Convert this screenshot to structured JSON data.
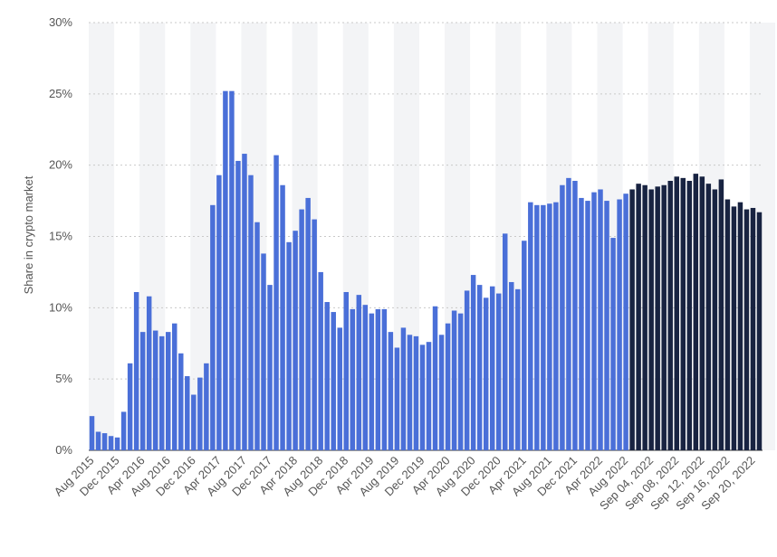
{
  "chart_data": {
    "type": "bar",
    "ylabel": "Share in crypto market",
    "ylim": [
      0,
      30
    ],
    "y_ticks": [
      "0%",
      "5%",
      "10%",
      "15%",
      "20%",
      "25%",
      "30%"
    ],
    "grid": true,
    "colors": {
      "monthly": "#4a6fd8",
      "weekly": "#182341",
      "band": "#f3f4f6",
      "grid": "#c9c9c9"
    },
    "x_tick_labels": [
      "Aug 2015",
      "Dec 2015",
      "Apr 2016",
      "Aug 2016",
      "Dec 2016",
      "Apr 2017",
      "Aug 2017",
      "Dec 2017",
      "Apr 2018",
      "Aug 2018",
      "Dec 2018",
      "Apr 2019",
      "Aug 2019",
      "Dec 2019",
      "Apr 2020",
      "Aug 2020",
      "Dec 2020",
      "Apr 2021",
      "Aug 2021",
      "Dec 2021",
      "Apr 2022",
      "Aug 2022",
      "Sep 04, 2022",
      "Sep 08, 2022",
      "Sep 12, 2022",
      "Sep 16, 2022",
      "Sep 20, 2022"
    ],
    "x_tick_indices": [
      0,
      4,
      8,
      12,
      16,
      20,
      24,
      28,
      32,
      36,
      40,
      44,
      48,
      52,
      56,
      60,
      64,
      68,
      72,
      76,
      80,
      84,
      88,
      92,
      96,
      100,
      104
    ],
    "series": [
      {
        "values": [
          2.4,
          1.3,
          1.2,
          1.0,
          0.9,
          2.7,
          6.1,
          11.1,
          8.3,
          10.8,
          8.4,
          8.0,
          8.3,
          8.9,
          6.8,
          5.2,
          3.9,
          5.1,
          6.1,
          17.2,
          19.3,
          25.2,
          25.2,
          20.3,
          20.8,
          19.3,
          16.0,
          13.8,
          11.6,
          20.7,
          18.6,
          14.6,
          15.4,
          16.9,
          17.7,
          16.2,
          12.5,
          10.4,
          9.7,
          8.6,
          11.1,
          9.9,
          10.9,
          10.2,
          9.6,
          9.9,
          9.9,
          8.3,
          7.2,
          8.6,
          8.1,
          8.0,
          7.4,
          7.6,
          10.1,
          8.1,
          8.9,
          9.8,
          9.6,
          11.2,
          12.3,
          11.6,
          10.7,
          11.5,
          11.0,
          15.2,
          11.8,
          11.3,
          14.7,
          17.4,
          17.2,
          17.2,
          17.3,
          17.4,
          18.6,
          19.1,
          18.9,
          17.7,
          17.5,
          18.1,
          18.3,
          17.5,
          14.9,
          17.6,
          18.0
        ]
      },
      {
        "values": [
          18.3,
          18.7,
          18.6,
          18.3,
          18.5,
          18.6,
          18.9,
          19.2,
          19.1,
          18.9,
          19.4,
          19.2,
          18.7,
          18.3,
          19.0,
          17.6,
          17.1,
          17.4,
          16.9,
          17.0,
          16.7
        ]
      }
    ]
  }
}
